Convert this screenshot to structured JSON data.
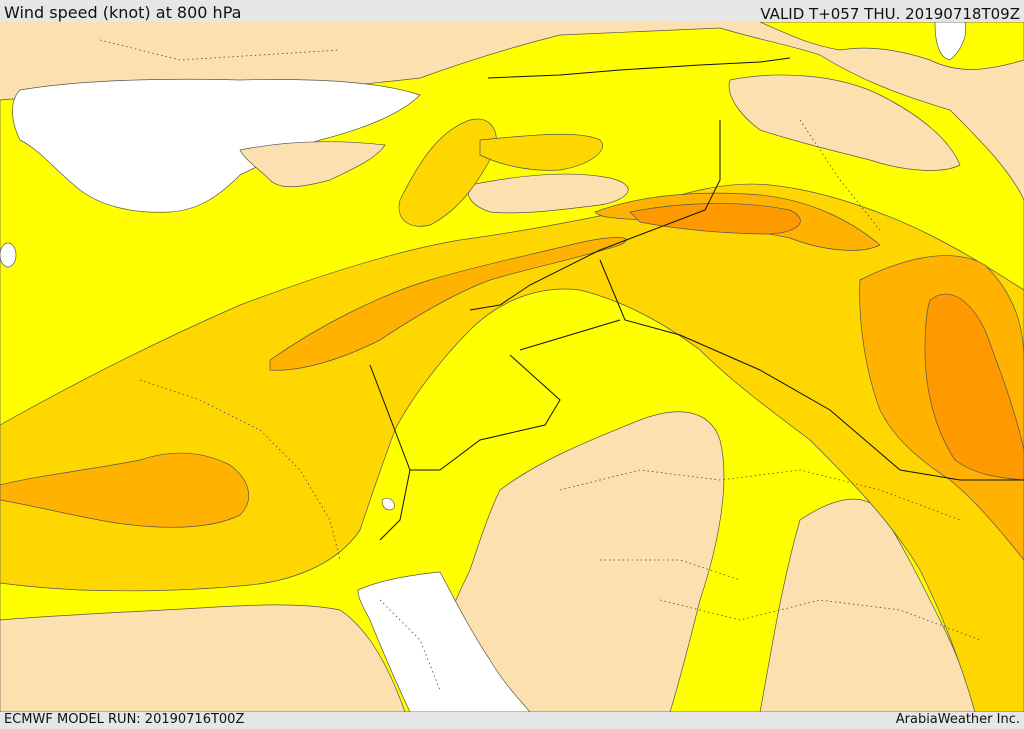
{
  "header": {
    "title": "Wind speed (knot) at 800 hPa",
    "valid": "VALID T+057 THU. 20190718T09Z"
  },
  "footer": {
    "model_run": "ECMWF MODEL RUN: 20190716T00Z",
    "credit": "ArabiaWeather Inc."
  },
  "palette": {
    "sea": "#ffffff",
    "calm": "#fde0b0",
    "light": "#ffff00",
    "moderate": "#ffd700",
    "fresh": "#ffb300",
    "strong": "#ff9900"
  }
}
